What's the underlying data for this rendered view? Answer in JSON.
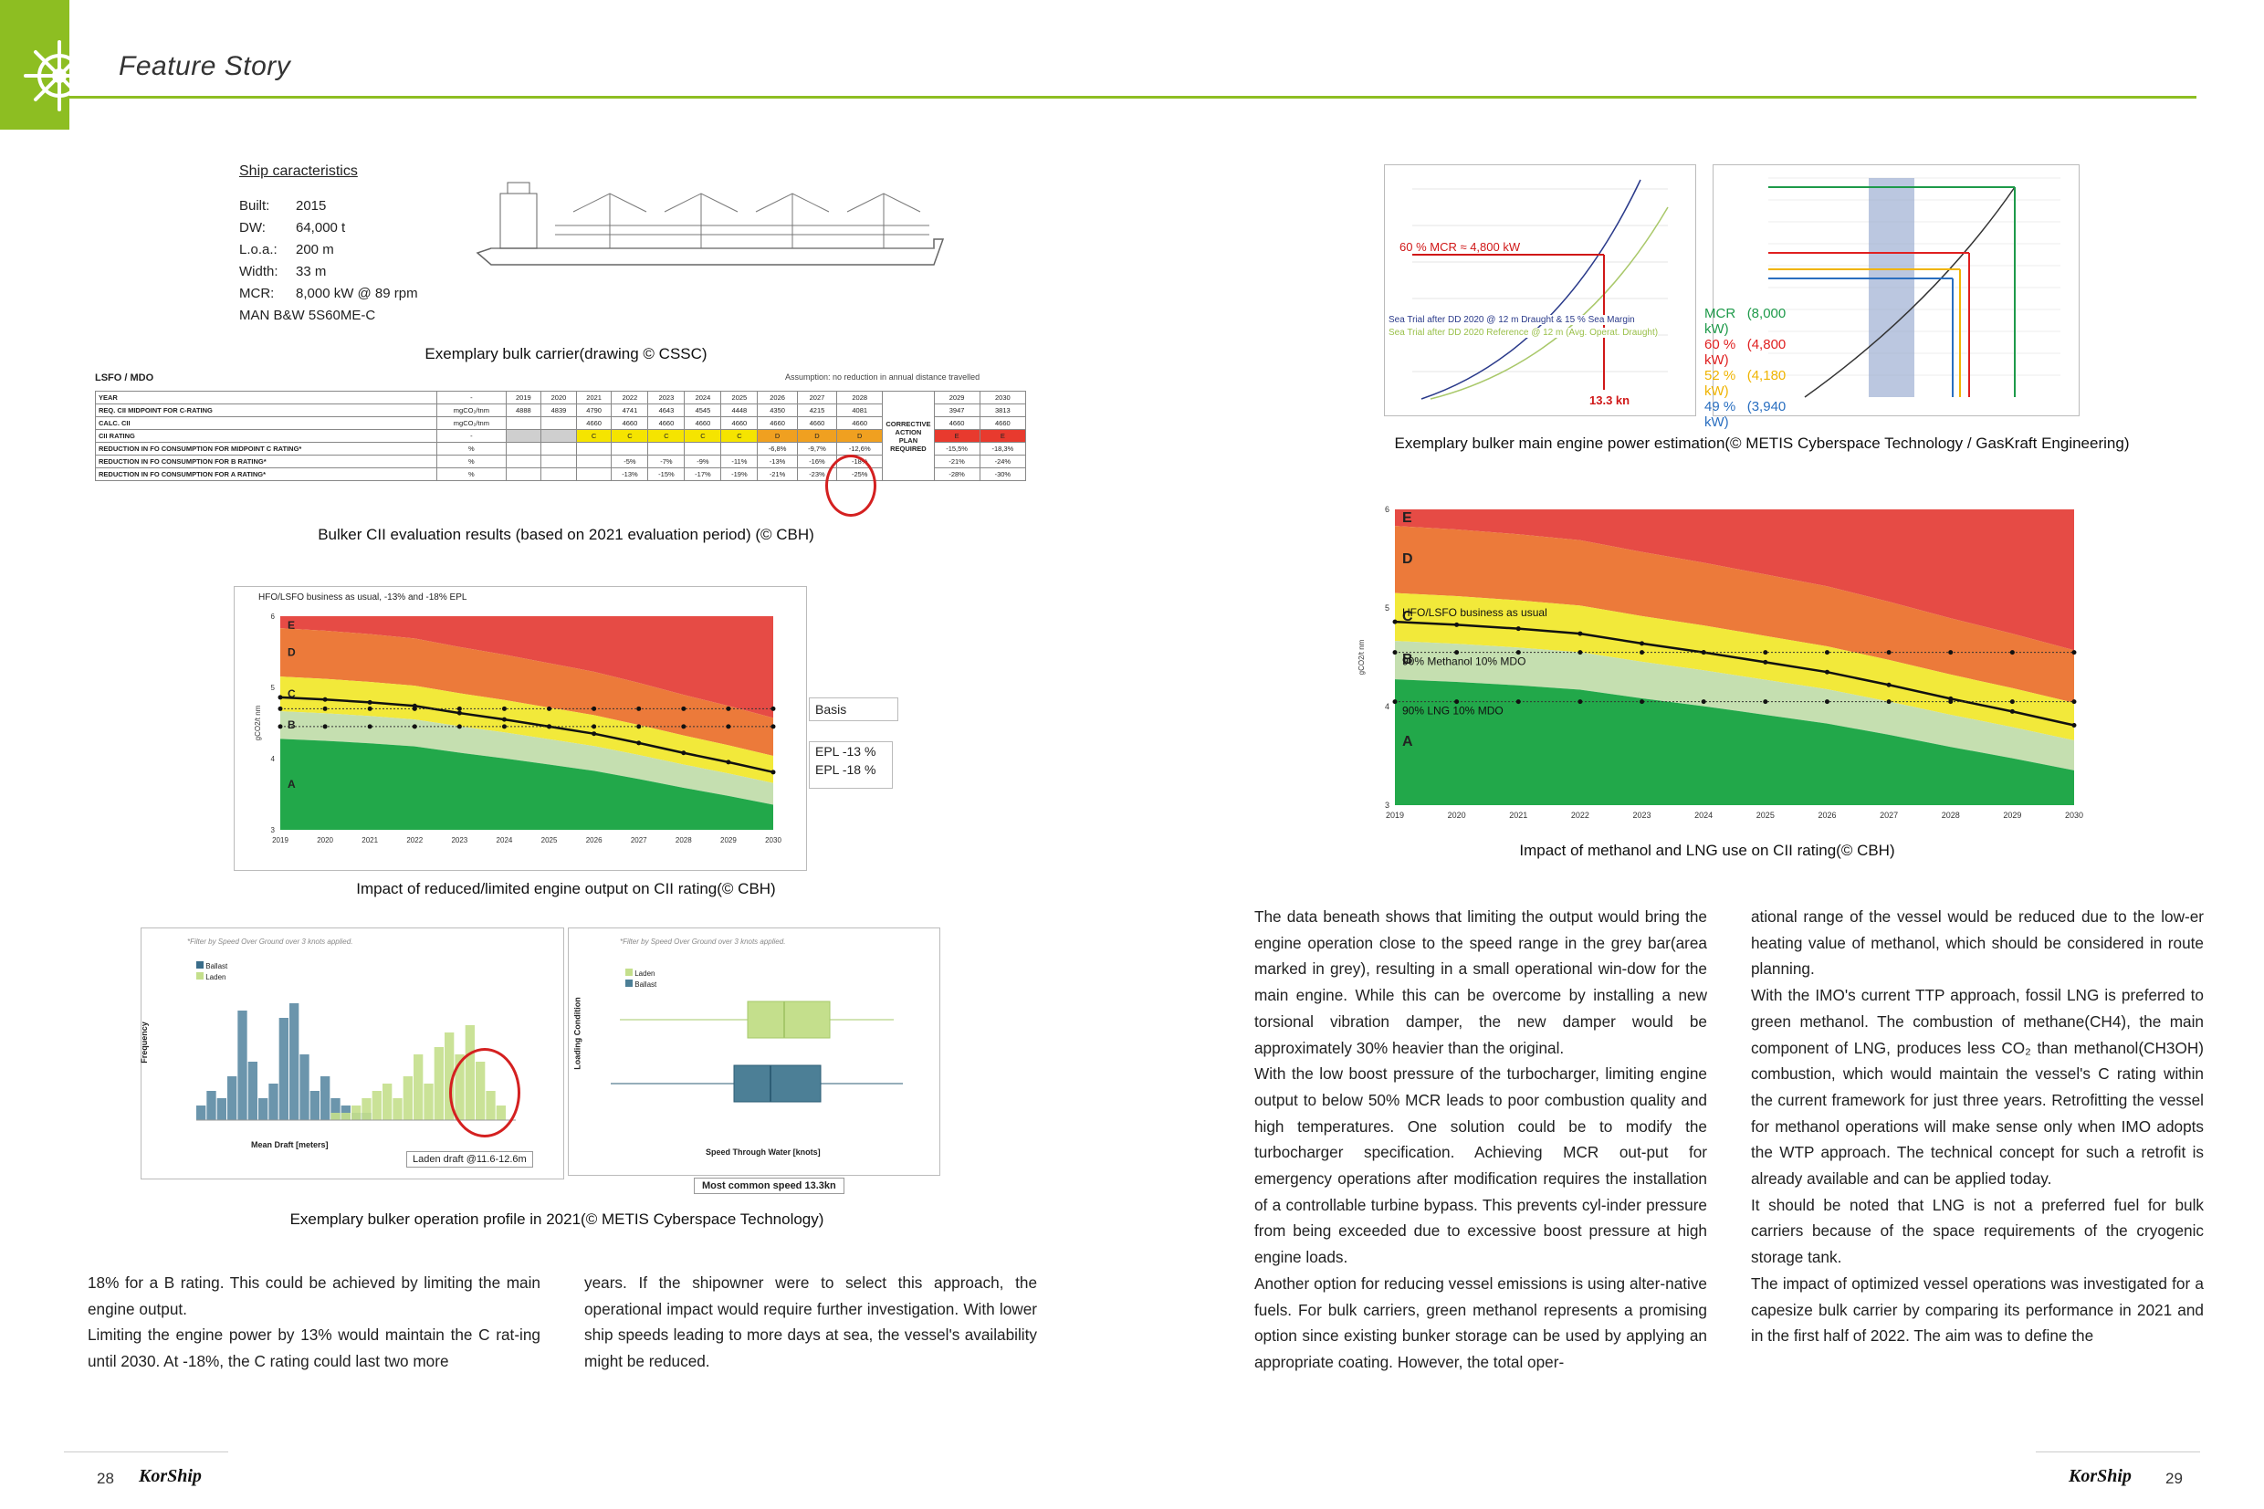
{
  "header": {
    "section_title": "Feature Story"
  },
  "colors": {
    "accent_green": "#8dbe22",
    "band_E": "#e64b45",
    "band_D": "#ec7a3a",
    "band_C": "#f2e93a",
    "band_B": "#c5dfb0",
    "band_A": "#22a84a"
  },
  "ship_spec": {
    "title": "Ship caracteristics",
    "rows": [
      {
        "k": "Built:",
        "v": "2015"
      },
      {
        "k": "DW:",
        "v": "64,000 t"
      },
      {
        "k": "L.o.a.:",
        "v": "200 m"
      },
      {
        "k": "Width:",
        "v": "33 m"
      },
      {
        "k": "MCR:",
        "v": "8,000 kW @ 89 rpm"
      }
    ],
    "engine": "MAN B&W 5S60ME-C"
  },
  "captions": {
    "bulk_carrier": "Exemplary bulk carrier(drawing © CSSC)",
    "cii_table": "Bulker CII evaluation results (based on 2021 evaluation period) (© CBH)",
    "engine_output": "Impact of reduced/limited engine output on CII rating(© CBH)",
    "operation_profile": "Exemplary bulker operation profile in 2021(© METIS Cyberspace Technology)",
    "power_estimation": "Exemplary bulker main engine power estimation(© METIS Cyberspace Technology / GasKraft Engineering)",
    "methanol_lng": "Impact of methanol and LNG use on CII rating(© CBH)"
  },
  "cii_table": {
    "title": "LSFO / MDO",
    "note": "Assumption: no reduction in annual distance travelled",
    "years": [
      "2019",
      "2020",
      "2021",
      "2022",
      "2023",
      "2024",
      "2025",
      "2026",
      "2027",
      "2028",
      "2029",
      "2030"
    ],
    "rows": [
      {
        "label": "YEAR",
        "unit": "-",
        "cells": [
          "2019",
          "2020",
          "2021",
          "2022",
          "2023",
          "2024",
          "2025",
          "2026",
          "2027",
          "2028",
          "2029",
          "2030"
        ]
      },
      {
        "label": "REQ. CII MIDPOINT FOR C-RATING",
        "unit": "mgCO₂/tnm",
        "cells": [
          "4888",
          "4839",
          "4790",
          "4741",
          "4643",
          "4545",
          "4448",
          "4350",
          "4215",
          "4081",
          "3947",
          "3813"
        ]
      },
      {
        "label": "CALC. CII",
        "unit": "mgCO₂/tnm",
        "cells": [
          "",
          "",
          "4660",
          "4660",
          "4660",
          "4660",
          "4660",
          "4660",
          "4660",
          "4660",
          "4660",
          "4660"
        ]
      },
      {
        "label": "CII RATING",
        "unit": "-",
        "cells": [
          "",
          "",
          "C",
          "C",
          "C",
          "C",
          "C",
          "D",
          "D",
          "D",
          "E",
          "E"
        ]
      },
      {
        "label": "REDUCTION IN FO CONSUMPTION FOR MIDPOINT C RATING*",
        "unit": "%",
        "cells": [
          "",
          "",
          "",
          "",
          "",
          "",
          "",
          "-6,8%",
          "-9,7%",
          "-12,6%",
          "-15,5%",
          "-18,3%"
        ]
      },
      {
        "label": "REDUCTION IN FO CONSUMPTION FOR B RATING*",
        "unit": "%",
        "cells": [
          "",
          "",
          "",
          "-5%",
          "-7%",
          "-9%",
          "-11%",
          "-13%",
          "-16%",
          "-18%",
          "-21%",
          "-24%"
        ]
      },
      {
        "label": "REDUCTION IN FO CONSUMPTION FOR A RATING*",
        "unit": "%",
        "cells": [
          "",
          "",
          "",
          "-13%",
          "-15%",
          "-17%",
          "-19%",
          "-21%",
          "-23%",
          "-25%",
          "-28%",
          "-30%"
        ]
      }
    ],
    "corrective_label": "CORRECTIVE ACTION PLAN REQUIRED"
  },
  "chart_data": [
    {
      "type": "area",
      "title": "HFO/LSFO business as usual, -13% and -18% EPL",
      "x": [
        "2019",
        "2020",
        "2021",
        "2022",
        "2023",
        "2024",
        "2025",
        "2026",
        "2027",
        "2028",
        "2029",
        "2030"
      ],
      "ylabel": "gCO2/t nm",
      "ylim": [
        3,
        6
      ],
      "bands": [
        "E",
        "D",
        "C",
        "B",
        "A"
      ],
      "series": [
        {
          "name": "Basis",
          "values": [
            4.86,
            4.83,
            4.79,
            4.74,
            4.64,
            4.55,
            4.45,
            4.35,
            4.22,
            4.08,
            3.95,
            3.81
          ]
        },
        {
          "name": "EPL -13 %",
          "values": [
            4.7,
            4.7,
            4.7,
            4.7,
            4.7,
            4.7,
            4.7,
            4.7,
            4.7,
            4.7,
            4.7,
            4.7
          ]
        },
        {
          "name": "EPL -18 %",
          "values": [
            4.45,
            4.45,
            4.45,
            4.45,
            4.45,
            4.45,
            4.45,
            4.45,
            4.45,
            4.45,
            4.45,
            4.45
          ]
        }
      ]
    },
    {
      "type": "area",
      "x": [
        "2019",
        "2020",
        "2021",
        "2022",
        "2023",
        "2024",
        "2025",
        "2026",
        "2027",
        "2028",
        "2029",
        "2030"
      ],
      "ylabel": "gCO2/t nm",
      "ylim": [
        3,
        6
      ],
      "bands": [
        "E",
        "D",
        "C",
        "B",
        "A"
      ],
      "series": [
        {
          "name": "HFO/LSFO business as usual",
          "values": [
            4.86,
            4.83,
            4.79,
            4.74,
            4.64,
            4.55,
            4.45,
            4.35,
            4.22,
            4.08,
            3.95,
            3.81
          ]
        },
        {
          "name": "90% Methanol 10% MDO",
          "values": [
            4.55,
            4.55,
            4.55,
            4.55,
            4.55,
            4.55,
            4.55,
            4.55,
            4.55,
            4.55,
            4.55,
            4.55
          ]
        },
        {
          "name": "90% LNG 10% MDO",
          "values": [
            4.05,
            4.05,
            4.05,
            4.05,
            4.05,
            4.05,
            4.05,
            4.05,
            4.05,
            4.05,
            4.05,
            4.05
          ]
        }
      ]
    },
    {
      "type": "bar",
      "subtitle": "*Filter by Speed Over Ground over 3 knots applied.",
      "xlabel": "Mean Draft [meters]",
      "ylabel": "Frequency",
      "series": [
        {
          "name": "Ballast"
        },
        {
          "name": "Laden"
        }
      ],
      "annotation": "Laden draft @11.6-12.6m"
    },
    {
      "type": "scatter",
      "subtitle": "*Filter by Speed Over Ground over 3 knots applied.",
      "xlabel": "Speed Through Water [knots]",
      "ylabel": "Loading Condition",
      "categories": [
        "Laden",
        "Ballast"
      ],
      "series": [
        {
          "name": "Laden"
        },
        {
          "name": "Ballast"
        }
      ],
      "annotation": "Most common speed 13.3kn"
    },
    {
      "type": "line",
      "series": [
        {
          "name": "Sea Trial after DD 2020 @ 12 m Draught & 15 % Sea Margin"
        },
        {
          "name": "Sea Trial after DD 2020 Reference @ 12 m (Avg. Operat. Draught)"
        }
      ],
      "annotations": [
        "60 % MCR ≈ 4,800 kW",
        "13.3 kn"
      ]
    },
    {
      "type": "line",
      "legend": [
        {
          "label": "MCR",
          "value": "(8,000 kW)",
          "color": "#1e9a4a"
        },
        {
          "label": "60 %",
          "value": "(4,800 kW)",
          "color": "#e02020"
        },
        {
          "label": "52 %",
          "value": "(4,180 kW)",
          "color": "#f0b400"
        },
        {
          "label": "49 %",
          "value": "(3,940 kW)",
          "color": "#2a6fc0"
        }
      ]
    }
  ],
  "text": {
    "left_col1": "18% for a B rating. This could be achieved by limiting the main engine output.\nLimiting the engine power by 13% would maintain the C rating until 2030. At -18%, the C rating could last two more",
    "left_col1_a": "18% for a B rating. This could be achieved by limiting the main engine output.",
    "left_col1_b": "Limiting the engine power by 13% would maintain the C rat-ing until 2030. At -18%, the C rating could last two more",
    "left_col2": "years. If the shipowner were to select this approach, the operational impact would require further investigation. With lower ship speeds leading to more days at sea, the vessel's availability might be reduced.",
    "right_col1_a": "The data beneath shows that limiting the output would bring the engine operation close to the speed range in the grey bar(area marked in grey), resulting in a small operational win-dow for the main engine. While this can be overcome by installing a new torsional vibration damper, the new damper would be approximately 30% heavier than the original.",
    "right_col1_b": "With the low boost pressure of the turbocharger, limiting engine output to below 50% MCR leads to poor combustion quality and high temperatures. One solution could be to modify the turbocharger specification. Achieving MCR out-put for emergency operations after modification requires the installation of a controllable turbine bypass. This prevents cyl-inder pressure from being exceeded due to excessive boost pressure at high engine loads.",
    "right_col1_c": "Another option for reducing vessel emissions is using alter-native fuels. For bulk carriers, green methanol represents a promising option since existing bunker storage can be used by applying an appropriate coating. However, the total oper-",
    "right_col2_a": "ational range of the vessel would be reduced due to the low-er heating value of methanol, which should be considered in route planning.",
    "right_col2_b": "With the IMO's current TTP approach, fossil LNG is preferred to green methanol. The combustion of methane(CH4), the main component of LNG, produces less CO₂ than methanol(CH3OH) combustion, which would maintain the vessel's C rating within the current framework for just three years. Retrofitting the vessel for methanol operations will make sense only when IMO adopts the WTP approach. The technical concept for such a retrofit is already available and can be applied today.",
    "right_col2_c": "It should be noted that LNG is not a preferred fuel for bulk carriers because of the space requirements of the cryogenic storage tank.",
    "right_col2_d": "The impact of optimized vessel operations was investigated for a capesize bulk carrier by comparing its performance in 2021 and in the first half of 2022. The aim was to define the"
  },
  "footer": {
    "left_page": "28",
    "right_page": "29",
    "logo": "KorShip"
  }
}
